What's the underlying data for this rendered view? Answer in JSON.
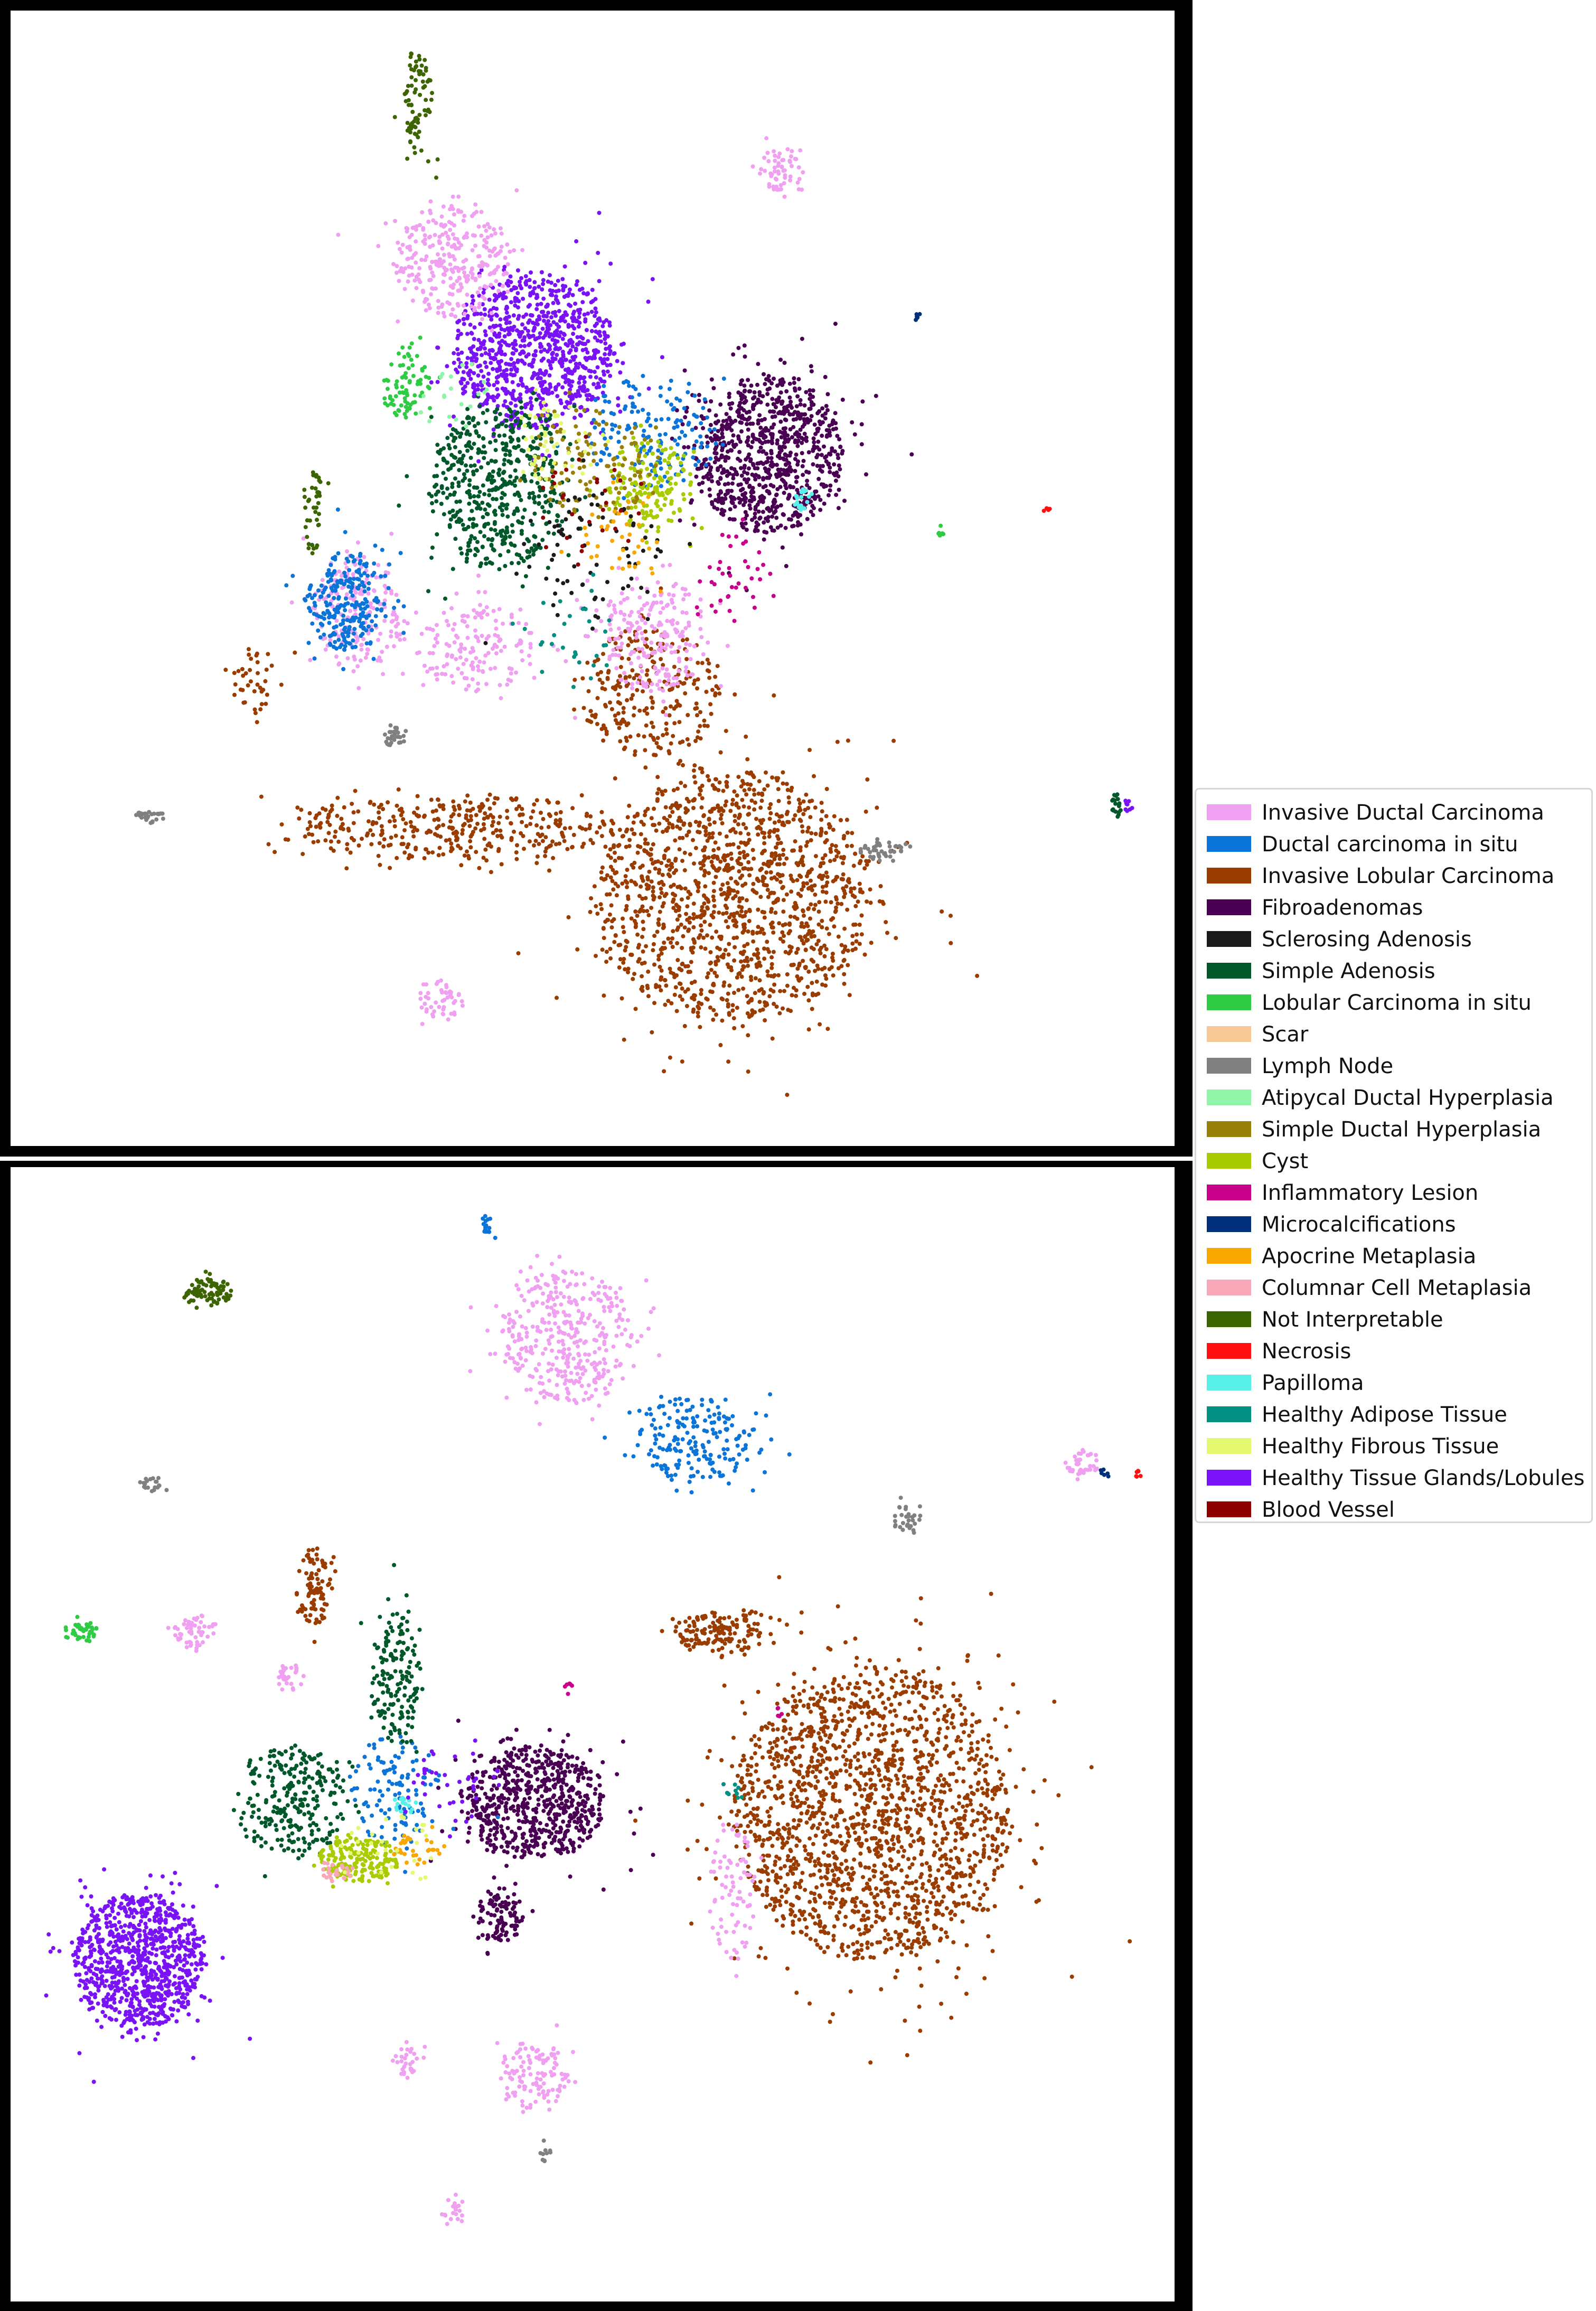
{
  "chart_data": [
    {
      "type": "scatter",
      "panel": "top",
      "title": "",
      "xlabel": "",
      "ylabel": "",
      "axes_visible": false,
      "grid": false,
      "clusters": [
        {
          "class": "Invasive Lobular Carcinoma",
          "cx": 0.62,
          "cy": 0.78,
          "rx": 0.12,
          "ry": 0.11,
          "count": 1400
        },
        {
          "class": "Invasive Lobular Carcinoma",
          "cx": 0.38,
          "cy": 0.72,
          "rx": 0.14,
          "ry": 0.03,
          "count": 380
        },
        {
          "class": "Invasive Lobular Carcinoma",
          "cx": 0.55,
          "cy": 0.6,
          "rx": 0.06,
          "ry": 0.06,
          "count": 260
        },
        {
          "class": "Invasive Lobular Carcinoma",
          "cx": 0.21,
          "cy": 0.59,
          "rx": 0.02,
          "ry": 0.03,
          "count": 40
        },
        {
          "class": "Healthy Tissue Glands/Lobules",
          "cx": 0.45,
          "cy": 0.3,
          "rx": 0.07,
          "ry": 0.07,
          "count": 900
        },
        {
          "class": "Fibroadenomas",
          "cx": 0.65,
          "cy": 0.39,
          "rx": 0.065,
          "ry": 0.07,
          "count": 850
        },
        {
          "class": "Invasive Ductal Carcinoma",
          "cx": 0.38,
          "cy": 0.22,
          "rx": 0.05,
          "ry": 0.05,
          "count": 300
        },
        {
          "class": "Invasive Ductal Carcinoma",
          "cx": 0.66,
          "cy": 0.14,
          "rx": 0.02,
          "ry": 0.02,
          "count": 60
        },
        {
          "class": "Invasive Ductal Carcinoma",
          "cx": 0.4,
          "cy": 0.56,
          "rx": 0.05,
          "ry": 0.04,
          "count": 160
        },
        {
          "class": "Invasive Ductal Carcinoma",
          "cx": 0.55,
          "cy": 0.55,
          "rx": 0.05,
          "ry": 0.05,
          "count": 220
        },
        {
          "class": "Invasive Ductal Carcinoma",
          "cx": 0.37,
          "cy": 0.87,
          "rx": 0.02,
          "ry": 0.02,
          "count": 50
        },
        {
          "class": "Invasive Ductal Carcinoma",
          "cx": 0.3,
          "cy": 0.53,
          "rx": 0.04,
          "ry": 0.05,
          "count": 200
        },
        {
          "class": "Ductal carcinoma in situ",
          "cx": 0.29,
          "cy": 0.52,
          "rx": 0.035,
          "ry": 0.045,
          "count": 260
        },
        {
          "class": "Ductal carcinoma in situ",
          "cx": 0.55,
          "cy": 0.37,
          "rx": 0.06,
          "ry": 0.05,
          "count": 160
        },
        {
          "class": "Simple Adenosis",
          "cx": 0.42,
          "cy": 0.42,
          "rx": 0.06,
          "ry": 0.07,
          "count": 520
        },
        {
          "class": "Simple Adenosis",
          "cx": 0.95,
          "cy": 0.7,
          "rx": 0.004,
          "ry": 0.012,
          "count": 20
        },
        {
          "class": "Cyst",
          "cx": 0.55,
          "cy": 0.42,
          "rx": 0.04,
          "ry": 0.04,
          "count": 160
        },
        {
          "class": "Lobular Carcinoma in situ",
          "cx": 0.34,
          "cy": 0.33,
          "rx": 0.02,
          "ry": 0.03,
          "count": 80
        },
        {
          "class": "Lobular Carcinoma in situ",
          "cx": 0.8,
          "cy": 0.46,
          "rx": 0.003,
          "ry": 0.003,
          "count": 8
        },
        {
          "class": "Not Interpretable",
          "cx": 0.35,
          "cy": 0.08,
          "rx": 0.012,
          "ry": 0.05,
          "count": 80
        },
        {
          "class": "Not Interpretable",
          "cx": 0.26,
          "cy": 0.44,
          "rx": 0.01,
          "ry": 0.04,
          "count": 40
        },
        {
          "class": "Lymph Node",
          "cx": 0.12,
          "cy": 0.71,
          "rx": 0.012,
          "ry": 0.006,
          "count": 30
        },
        {
          "class": "Lymph Node",
          "cx": 0.75,
          "cy": 0.74,
          "rx": 0.02,
          "ry": 0.008,
          "count": 40
        },
        {
          "class": "Lymph Node",
          "cx": 0.33,
          "cy": 0.64,
          "rx": 0.01,
          "ry": 0.01,
          "count": 30
        },
        {
          "class": "Papilloma",
          "cx": 0.68,
          "cy": 0.43,
          "rx": 0.008,
          "ry": 0.01,
          "count": 20
        },
        {
          "class": "Simple Ductal Hyperplasia",
          "cx": 0.5,
          "cy": 0.4,
          "rx": 0.05,
          "ry": 0.05,
          "count": 120
        },
        {
          "class": "Sclerosing Adenosis",
          "cx": 0.5,
          "cy": 0.48,
          "rx": 0.06,
          "ry": 0.06,
          "count": 80
        },
        {
          "class": "Healthy Tissue Glands/Lobules",
          "cx": 0.96,
          "cy": 0.7,
          "rx": 0.003,
          "ry": 0.006,
          "count": 10
        },
        {
          "class": "Necrosis",
          "cx": 0.89,
          "cy": 0.44,
          "rx": 0.003,
          "ry": 0.003,
          "count": 6
        },
        {
          "class": "Microcalcifications",
          "cx": 0.78,
          "cy": 0.27,
          "rx": 0.003,
          "ry": 0.004,
          "count": 6
        },
        {
          "class": "Inflammatory Lesion",
          "cx": 0.62,
          "cy": 0.5,
          "rx": 0.03,
          "ry": 0.04,
          "count": 40
        },
        {
          "class": "Apocrine Metaplasia",
          "cx": 0.53,
          "cy": 0.46,
          "rx": 0.04,
          "ry": 0.04,
          "count": 40
        },
        {
          "class": "Healthy Fibrous Tissue",
          "cx": 0.47,
          "cy": 0.38,
          "rx": 0.04,
          "ry": 0.04,
          "count": 50
        },
        {
          "class": "Blood Vessel",
          "cx": 0.5,
          "cy": 0.44,
          "rx": 0.05,
          "ry": 0.05,
          "count": 30
        },
        {
          "class": "Healthy Adipose Tissue",
          "cx": 0.48,
          "cy": 0.55,
          "rx": 0.04,
          "ry": 0.05,
          "count": 30
        },
        {
          "class": "Atipycal Ductal Hyperplasia",
          "cx": 0.38,
          "cy": 0.34,
          "rx": 0.03,
          "ry": 0.03,
          "count": 20
        }
      ]
    },
    {
      "type": "scatter",
      "panel": "bottom",
      "title": "",
      "xlabel": "",
      "ylabel": "",
      "axes_visible": false,
      "grid": false,
      "clusters": [
        {
          "class": "Invasive Lobular Carcinoma",
          "cx": 0.74,
          "cy": 0.57,
          "rx": 0.12,
          "ry": 0.13,
          "count": 1800
        },
        {
          "class": "Invasive Lobular Carcinoma",
          "cx": 0.61,
          "cy": 0.41,
          "rx": 0.04,
          "ry": 0.02,
          "count": 150
        },
        {
          "class": "Invasive Lobular Carcinoma",
          "cx": 0.26,
          "cy": 0.37,
          "rx": 0.015,
          "ry": 0.035,
          "count": 90
        },
        {
          "class": "Healthy Tissue Glands/Lobules",
          "cx": 0.11,
          "cy": 0.7,
          "rx": 0.055,
          "ry": 0.06,
          "count": 900
        },
        {
          "class": "Fibroadenomas",
          "cx": 0.45,
          "cy": 0.56,
          "rx": 0.06,
          "ry": 0.05,
          "count": 650
        },
        {
          "class": "Fibroadenomas",
          "cx": 0.42,
          "cy": 0.66,
          "rx": 0.02,
          "ry": 0.025,
          "count": 100
        },
        {
          "class": "Invasive Ductal Carcinoma",
          "cx": 0.48,
          "cy": 0.15,
          "rx": 0.06,
          "ry": 0.06,
          "count": 380
        },
        {
          "class": "Invasive Ductal Carcinoma",
          "cx": 0.45,
          "cy": 0.8,
          "rx": 0.03,
          "ry": 0.03,
          "count": 120
        },
        {
          "class": "Invasive Ductal Carcinoma",
          "cx": 0.92,
          "cy": 0.26,
          "rx": 0.015,
          "ry": 0.012,
          "count": 40
        },
        {
          "class": "Invasive Ductal Carcinoma",
          "cx": 0.62,
          "cy": 0.64,
          "rx": 0.02,
          "ry": 0.06,
          "count": 80
        },
        {
          "class": "Invasive Ductal Carcinoma",
          "cx": 0.16,
          "cy": 0.41,
          "rx": 0.02,
          "ry": 0.015,
          "count": 60
        },
        {
          "class": "Invasive Ductal Carcinoma",
          "cx": 0.24,
          "cy": 0.45,
          "rx": 0.012,
          "ry": 0.012,
          "count": 30
        },
        {
          "class": "Invasive Ductal Carcinoma",
          "cx": 0.34,
          "cy": 0.79,
          "rx": 0.012,
          "ry": 0.015,
          "count": 30
        },
        {
          "class": "Invasive Ductal Carcinoma",
          "cx": 0.38,
          "cy": 0.92,
          "rx": 0.01,
          "ry": 0.015,
          "count": 20
        },
        {
          "class": "Ductal carcinoma in situ",
          "cx": 0.59,
          "cy": 0.24,
          "rx": 0.05,
          "ry": 0.04,
          "count": 200
        },
        {
          "class": "Ductal carcinoma in situ",
          "cx": 0.33,
          "cy": 0.55,
          "rx": 0.04,
          "ry": 0.05,
          "count": 120
        },
        {
          "class": "Ductal carcinoma in situ",
          "cx": 0.41,
          "cy": 0.05,
          "rx": 0.005,
          "ry": 0.012,
          "count": 15
        },
        {
          "class": "Simple Adenosis",
          "cx": 0.24,
          "cy": 0.56,
          "rx": 0.05,
          "ry": 0.05,
          "count": 260
        },
        {
          "class": "Simple Adenosis",
          "cx": 0.33,
          "cy": 0.45,
          "rx": 0.02,
          "ry": 0.06,
          "count": 160
        },
        {
          "class": "Cyst",
          "cx": 0.3,
          "cy": 0.61,
          "rx": 0.035,
          "ry": 0.02,
          "count": 180
        },
        {
          "class": "Not Interpretable",
          "cx": 0.17,
          "cy": 0.11,
          "rx": 0.02,
          "ry": 0.012,
          "count": 80
        },
        {
          "class": "Lobular Carcinoma in situ",
          "cx": 0.06,
          "cy": 0.41,
          "rx": 0.015,
          "ry": 0.01,
          "count": 40
        },
        {
          "class": "Lymph Node",
          "cx": 0.77,
          "cy": 0.31,
          "rx": 0.012,
          "ry": 0.015,
          "count": 30
        },
        {
          "class": "Lymph Node",
          "cx": 0.12,
          "cy": 0.28,
          "rx": 0.01,
          "ry": 0.006,
          "count": 20
        },
        {
          "class": "Lymph Node",
          "cx": 0.46,
          "cy": 0.87,
          "rx": 0.005,
          "ry": 0.008,
          "count": 10
        },
        {
          "class": "Apocrine Metaplasia",
          "cx": 0.35,
          "cy": 0.6,
          "rx": 0.02,
          "ry": 0.015,
          "count": 30
        },
        {
          "class": "Papilloma",
          "cx": 0.34,
          "cy": 0.56,
          "rx": 0.01,
          "ry": 0.01,
          "count": 15
        },
        {
          "class": "Columnar Cell Metaplasia",
          "cx": 0.28,
          "cy": 0.62,
          "rx": 0.015,
          "ry": 0.01,
          "count": 25
        },
        {
          "class": "Inflammatory Lesion",
          "cx": 0.48,
          "cy": 0.46,
          "rx": 0.003,
          "ry": 0.006,
          "count": 6
        },
        {
          "class": "Inflammatory Lesion",
          "cx": 0.66,
          "cy": 0.48,
          "rx": 0.003,
          "ry": 0.005,
          "count": 6
        },
        {
          "class": "Healthy Tissue Glands/Lobules",
          "cx": 0.38,
          "cy": 0.54,
          "rx": 0.04,
          "ry": 0.04,
          "count": 40
        },
        {
          "class": "Healthy Fibrous Tissue",
          "cx": 0.33,
          "cy": 0.6,
          "rx": 0.04,
          "ry": 0.03,
          "count": 30
        },
        {
          "class": "Necrosis",
          "cx": 0.97,
          "cy": 0.27,
          "rx": 0.004,
          "ry": 0.004,
          "count": 6
        },
        {
          "class": "Healthy Adipose Tissue",
          "cx": 0.62,
          "cy": 0.55,
          "rx": 0.01,
          "ry": 0.01,
          "count": 10
        },
        {
          "class": "Microcalcifications",
          "cx": 0.94,
          "cy": 0.27,
          "rx": 0.005,
          "ry": 0.004,
          "count": 6
        }
      ]
    }
  ],
  "legend": {
    "placement": "right",
    "entries": [
      {
        "label": "Invasive Ductal Carcinoma",
        "color": "#f0a0f0"
      },
      {
        "label": "Ductal carcinoma in situ",
        "color": "#0a74d8"
      },
      {
        "label": "Invasive Lobular Carcinoma",
        "color": "#9a3c00"
      },
      {
        "label": "Fibroadenomas",
        "color": "#4a0052"
      },
      {
        "label": "Sclerosing Adenosis",
        "color": "#1a1a1a"
      },
      {
        "label": "Simple Adenosis",
        "color": "#00582a"
      },
      {
        "label": "Lobular Carcinoma in situ",
        "color": "#2ecc44"
      },
      {
        "label": "Scar",
        "color": "#f6c896"
      },
      {
        "label": "Lymph Node",
        "color": "#808080"
      },
      {
        "label": "Atipycal Ductal Hyperplasia",
        "color": "#90f5a8"
      },
      {
        "label": "Simple Ductal Hyperplasia",
        "color": "#988008"
      },
      {
        "label": "Cyst",
        "color": "#a8cc00"
      },
      {
        "label": "Inflammatory Lesion",
        "color": "#c8008a"
      },
      {
        "label": "Microcalcifications",
        "color": "#00307a"
      },
      {
        "label": "Apocrine Metaplasia",
        "color": "#f8a800"
      },
      {
        "label": "Columnar Cell Metaplasia",
        "color": "#f8a8b8"
      },
      {
        "label": "Not Interpretable",
        "color": "#3c6400"
      },
      {
        "label": "Necrosis",
        "color": "#ff1010"
      },
      {
        "label": "Papilloma",
        "color": "#5af0ea"
      },
      {
        "label": "Healthy Adipose Tissue",
        "color": "#008f80"
      },
      {
        "label": "Healthy Fibrous Tissue",
        "color": "#e4f870"
      },
      {
        "label": "Healthy Tissue Glands/Lobules",
        "color": "#7a12f8"
      },
      {
        "label": "Blood Vessel",
        "color": "#8c0000"
      }
    ]
  }
}
